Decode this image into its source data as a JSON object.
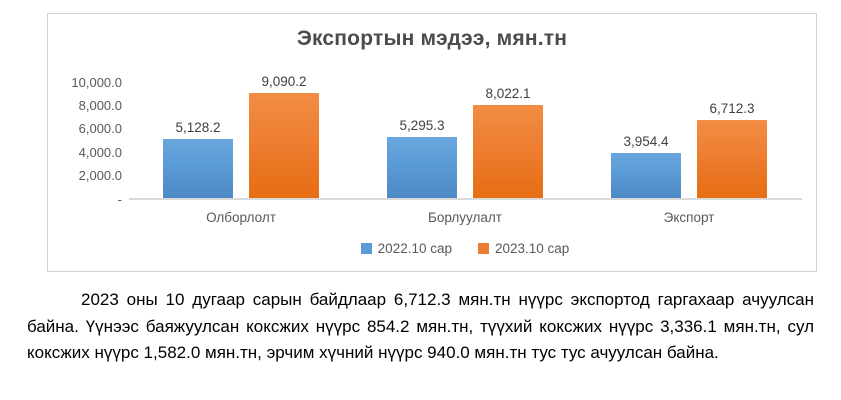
{
  "chart_data": {
    "type": "bar",
    "title": "Экспортын мэдээ, мян.тн",
    "categories": [
      "Олборлолт",
      "Борлуулалт",
      "Экспорт"
    ],
    "series": [
      {
        "name": "2022.10 сар",
        "color": "#5B9BD5",
        "values": [
          5128.2,
          5295.3,
          3954.4
        ],
        "labels": [
          "5,128.2",
          "5,295.3",
          "3,954.4"
        ]
      },
      {
        "name": "2023.10 сар",
        "color": "#ED7D31",
        "values": [
          9090.2,
          8022.1,
          6712.3
        ],
        "labels": [
          "9,090.2",
          "8,022.1",
          "6,712.3"
        ]
      }
    ],
    "y_axis": {
      "max": 10000,
      "ticks": [
        {
          "label": "10,000.0",
          "value": 10000
        },
        {
          "label": "8,000.0",
          "value": 8000
        },
        {
          "label": "6,000.0",
          "value": 6000
        },
        {
          "label": "4,000.0",
          "value": 4000
        },
        {
          "label": "2,000.0",
          "value": 2000
        },
        {
          "label": "-",
          "value": 0
        }
      ]
    },
    "legend_position": "bottom",
    "grid": false
  },
  "paragraph": {
    "text": "2023 оны 10 дугаар сарын байдлаар 6,712.3 мян.тн нүүрс экспортод гаргахаар ачуулсан байна. Үүнээс баяжуулсан коксжих нүүрс 854.2 мян.тн, түүхий коксжих нүүрс 3,336.1 мян.тн, сул коксжих нүүрс 1,582.0 мян.тн, эрчим хүчний нүүрс 940.0 мян.тн тус тус ачуулсан байна."
  },
  "colors": {
    "series_blue": "#5B9BD5",
    "series_orange": "#ED7D31",
    "axis_text": "#595959",
    "title_text": "#4C4C4C",
    "chart_border": "#D2D2D2",
    "axis_line": "#D9D9D9"
  }
}
